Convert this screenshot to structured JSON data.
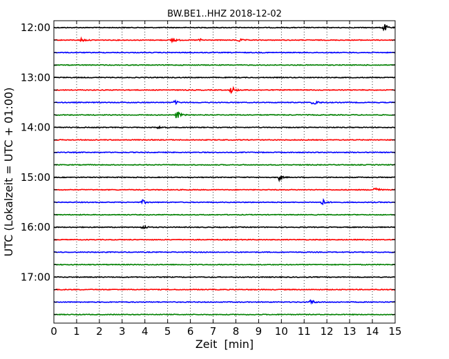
{
  "chart_data": {
    "type": "line",
    "title": "BW.BE1..HHZ 2018-12-02",
    "xlabel": "Zeit  [min]",
    "ylabel": "UTC (Lokalzeit = UTC + 01:00)",
    "xlim": [
      0,
      15
    ],
    "x_ticks": [
      "0",
      "1",
      "2",
      "3",
      "4",
      "5",
      "6",
      "7",
      "8",
      "9",
      "10",
      "11",
      "12",
      "13",
      "14",
      "15"
    ],
    "y_tick_labels": [
      "12:00",
      "13:00",
      "14:00",
      "15:00",
      "16:00",
      "17:00"
    ],
    "trace_interval_minutes": 15,
    "first_trace": "12:00",
    "trace_colors": [
      "#000000",
      "#ff0000",
      "#0000ff",
      "#008000"
    ],
    "grid": "vertical dotted",
    "traces": [
      {
        "start": "12:00",
        "events": [
          {
            "t": 14.5,
            "amp": 7
          }
        ]
      },
      {
        "start": "12:15",
        "events": [
          {
            "t": 1.2,
            "amp": 3
          },
          {
            "t": 5.2,
            "amp": 5
          },
          {
            "t": 6.4,
            "amp": 2
          },
          {
            "t": 8.1,
            "amp": 3
          }
        ]
      },
      {
        "start": "12:30",
        "events": []
      },
      {
        "start": "12:45",
        "events": []
      },
      {
        "start": "13:00",
        "events": []
      },
      {
        "start": "13:15",
        "events": [
          {
            "t": 7.8,
            "amp": 7
          }
        ]
      },
      {
        "start": "13:30",
        "events": [
          {
            "t": 5.3,
            "amp": 3
          },
          {
            "t": 11.4,
            "amp": 6
          }
        ]
      },
      {
        "start": "13:45",
        "events": [
          {
            "t": 5.4,
            "amp": 7
          }
        ]
      },
      {
        "start": "14:00",
        "events": [
          {
            "t": 4.6,
            "amp": 2
          }
        ]
      },
      {
        "start": "14:15",
        "events": []
      },
      {
        "start": "14:30",
        "events": []
      },
      {
        "start": "14:45",
        "events": []
      },
      {
        "start": "15:00",
        "events": [
          {
            "t": 9.9,
            "amp": 4
          }
        ]
      },
      {
        "start": "15:15",
        "events": [
          {
            "t": 14.1,
            "amp": 6
          }
        ]
      },
      {
        "start": "15:30",
        "events": [
          {
            "t": 3.9,
            "amp": 3
          },
          {
            "t": 11.8,
            "amp": 5
          }
        ]
      },
      {
        "start": "15:45",
        "events": []
      },
      {
        "start": "16:00",
        "events": [
          {
            "t": 3.9,
            "amp": 4
          }
        ]
      },
      {
        "start": "16:15",
        "events": []
      },
      {
        "start": "16:30",
        "events": []
      },
      {
        "start": "16:45",
        "events": []
      },
      {
        "start": "17:00",
        "events": []
      },
      {
        "start": "17:15",
        "events": []
      },
      {
        "start": "17:30",
        "events": [
          {
            "t": 11.3,
            "amp": 4
          }
        ]
      },
      {
        "start": "17:45",
        "events": []
      }
    ]
  }
}
